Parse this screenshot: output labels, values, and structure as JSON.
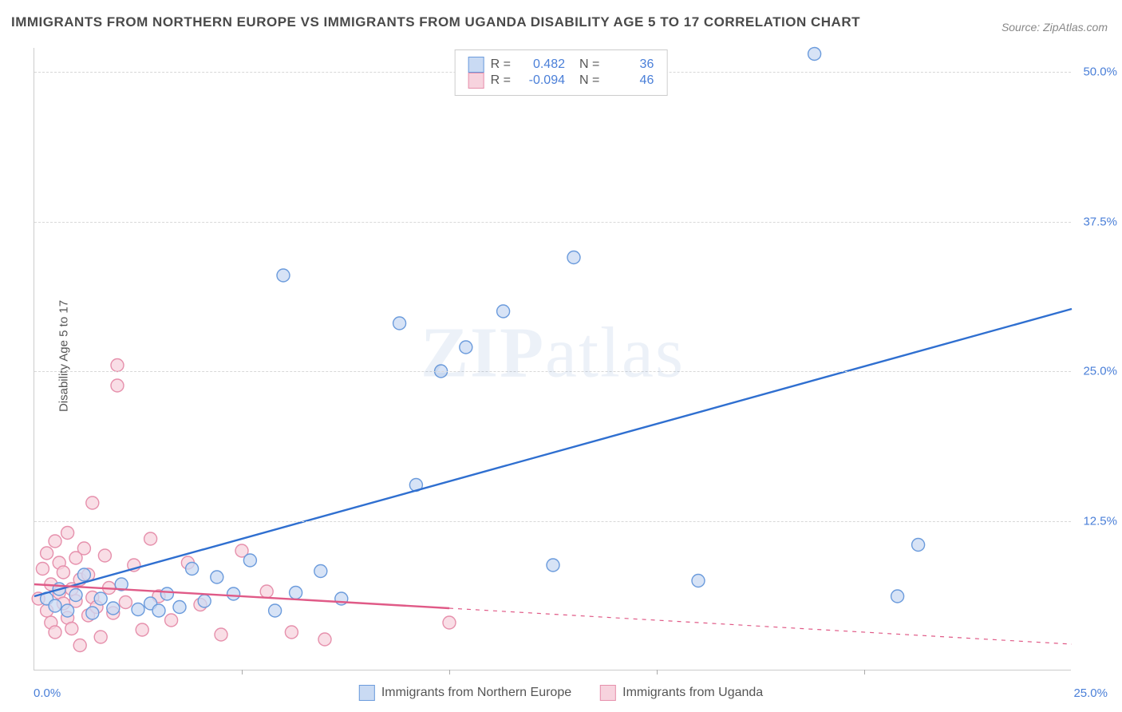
{
  "title": "IMMIGRANTS FROM NORTHERN EUROPE VS IMMIGRANTS FROM UGANDA DISABILITY AGE 5 TO 17 CORRELATION CHART",
  "source": "Source: ZipAtlas.com",
  "ylabel": "Disability Age 5 to 17",
  "watermark_a": "ZIP",
  "watermark_b": "atlas",
  "chart": {
    "type": "scatter",
    "xlim": [
      0,
      25
    ],
    "ylim": [
      0,
      52
    ],
    "ytick_values": [
      12.5,
      25.0,
      37.5,
      50.0
    ],
    "ytick_labels": [
      "12.5%",
      "25.0%",
      "37.5%",
      "50.0%"
    ],
    "xtick_values": [
      5,
      10,
      15,
      20
    ],
    "xlabel_min": "0.0%",
    "xlabel_max": "25.0%",
    "grid_color": "#d8d8d8",
    "background_color": "#ffffff",
    "series": [
      {
        "name": "Immigrants from Northern Europe",
        "short": "northern",
        "fill": "#c9daf3",
        "stroke": "#6b9bdc",
        "line_color": "#2f6fd0",
        "r_value": "0.482",
        "n_value": "36",
        "trend": {
          "x1": 0,
          "y1": 6.2,
          "x2": 25,
          "y2": 30.2,
          "solid_until_x": 25
        },
        "points": [
          {
            "x": 0.3,
            "y": 6.0
          },
          {
            "x": 0.5,
            "y": 5.4
          },
          {
            "x": 0.6,
            "y": 6.8
          },
          {
            "x": 0.8,
            "y": 5.0
          },
          {
            "x": 1.0,
            "y": 6.3
          },
          {
            "x": 1.2,
            "y": 8.0
          },
          {
            "x": 1.4,
            "y": 4.8
          },
          {
            "x": 1.6,
            "y": 6.0
          },
          {
            "x": 1.9,
            "y": 5.2
          },
          {
            "x": 2.1,
            "y": 7.2
          },
          {
            "x": 2.5,
            "y": 5.1
          },
          {
            "x": 2.8,
            "y": 5.6
          },
          {
            "x": 3.0,
            "y": 5.0
          },
          {
            "x": 3.2,
            "y": 6.4
          },
          {
            "x": 3.5,
            "y": 5.3
          },
          {
            "x": 3.8,
            "y": 8.5
          },
          {
            "x": 4.1,
            "y": 5.8
          },
          {
            "x": 4.4,
            "y": 7.8
          },
          {
            "x": 4.8,
            "y": 6.4
          },
          {
            "x": 5.2,
            "y": 9.2
          },
          {
            "x": 5.8,
            "y": 5.0
          },
          {
            "x": 6.3,
            "y": 6.5
          },
          {
            "x": 6.9,
            "y": 8.3
          },
          {
            "x": 7.4,
            "y": 6.0
          },
          {
            "x": 6.0,
            "y": 33.0
          },
          {
            "x": 8.8,
            "y": 29.0
          },
          {
            "x": 9.2,
            "y": 15.5
          },
          {
            "x": 9.8,
            "y": 25.0
          },
          {
            "x": 10.4,
            "y": 27.0
          },
          {
            "x": 11.3,
            "y": 30.0
          },
          {
            "x": 12.5,
            "y": 8.8
          },
          {
            "x": 13.0,
            "y": 34.5
          },
          {
            "x": 16.0,
            "y": 7.5
          },
          {
            "x": 18.8,
            "y": 51.5
          },
          {
            "x": 20.8,
            "y": 6.2
          },
          {
            "x": 21.3,
            "y": 10.5
          }
        ]
      },
      {
        "name": "Immigrants from Uganda",
        "short": "uganda",
        "fill": "#f7d3de",
        "stroke": "#e690ac",
        "line_color": "#e05a87",
        "r_value": "-0.094",
        "n_value": "46",
        "trend": {
          "x1": 0,
          "y1": 7.2,
          "x2": 25,
          "y2": 2.2,
          "solid_until_x": 10
        },
        "points": [
          {
            "x": 0.1,
            "y": 6.0
          },
          {
            "x": 0.2,
            "y": 8.5
          },
          {
            "x": 0.3,
            "y": 5.0
          },
          {
            "x": 0.3,
            "y": 9.8
          },
          {
            "x": 0.4,
            "y": 4.0
          },
          {
            "x": 0.4,
            "y": 7.2
          },
          {
            "x": 0.5,
            "y": 10.8
          },
          {
            "x": 0.5,
            "y": 3.2
          },
          {
            "x": 0.6,
            "y": 6.5
          },
          {
            "x": 0.6,
            "y": 9.0
          },
          {
            "x": 0.7,
            "y": 5.6
          },
          {
            "x": 0.7,
            "y": 8.2
          },
          {
            "x": 0.8,
            "y": 4.4
          },
          {
            "x": 0.8,
            "y": 11.5
          },
          {
            "x": 0.9,
            "y": 6.8
          },
          {
            "x": 0.9,
            "y": 3.5
          },
          {
            "x": 1.0,
            "y": 9.4
          },
          {
            "x": 1.0,
            "y": 5.8
          },
          {
            "x": 1.1,
            "y": 7.6
          },
          {
            "x": 1.1,
            "y": 2.1
          },
          {
            "x": 1.2,
            "y": 10.2
          },
          {
            "x": 1.3,
            "y": 4.6
          },
          {
            "x": 1.3,
            "y": 8.0
          },
          {
            "x": 1.4,
            "y": 6.1
          },
          {
            "x": 1.4,
            "y": 14.0
          },
          {
            "x": 1.5,
            "y": 5.3
          },
          {
            "x": 1.6,
            "y": 2.8
          },
          {
            "x": 1.7,
            "y": 9.6
          },
          {
            "x": 1.8,
            "y": 6.9
          },
          {
            "x": 1.9,
            "y": 4.8
          },
          {
            "x": 2.0,
            "y": 23.8
          },
          {
            "x": 2.0,
            "y": 25.5
          },
          {
            "x": 2.2,
            "y": 5.7
          },
          {
            "x": 2.4,
            "y": 8.8
          },
          {
            "x": 2.6,
            "y": 3.4
          },
          {
            "x": 2.8,
            "y": 11.0
          },
          {
            "x": 3.0,
            "y": 6.2
          },
          {
            "x": 3.3,
            "y": 4.2
          },
          {
            "x": 3.7,
            "y": 9.0
          },
          {
            "x": 4.0,
            "y": 5.5
          },
          {
            "x": 4.5,
            "y": 3.0
          },
          {
            "x": 5.0,
            "y": 10.0
          },
          {
            "x": 5.6,
            "y": 6.6
          },
          {
            "x": 6.2,
            "y": 3.2
          },
          {
            "x": 7.0,
            "y": 2.6
          },
          {
            "x": 10.0,
            "y": 4.0
          }
        ]
      }
    ]
  }
}
